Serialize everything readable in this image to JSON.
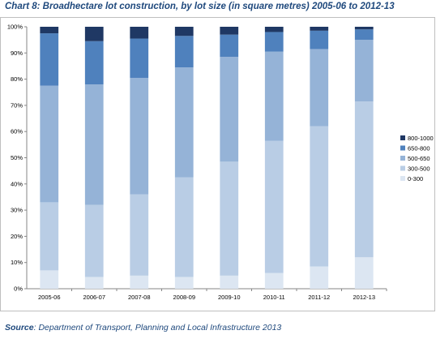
{
  "source_label": "Source",
  "source_text": ": Department of Transport, Planning and Local Infrastructure 2013",
  "chart_data": {
    "type": "bar",
    "stacked": true,
    "title": "Chart 8: Broadhectare lot construction, by lot size (in square metres) 2005-06 to 2012-13",
    "xlabel": "",
    "ylabel": "",
    "ylim": [
      0,
      100
    ],
    "y_ticks": [
      "0%",
      "10%",
      "20%",
      "30%",
      "40%",
      "50%",
      "60%",
      "70%",
      "80%",
      "90%",
      "100%"
    ],
    "categories": [
      "2005-06",
      "2006-07",
      "2007-08",
      "2008-09",
      "2009-10",
      "2010-11",
      "2011-12",
      "2012-13"
    ],
    "grid": false,
    "legend_position": "right",
    "series": [
      {
        "name": "0-300",
        "color": "#dce6f2",
        "values": [
          7,
          4.5,
          5,
          4.5,
          5,
          6,
          8.5,
          12
        ]
      },
      {
        "name": "300-500",
        "color": "#b9cde5",
        "values": [
          26,
          27.5,
          31,
          38,
          43.5,
          50.5,
          53.5,
          59.5
        ]
      },
      {
        "name": "500-650",
        "color": "#95b3d7",
        "values": [
          44.5,
          46,
          44.5,
          42,
          40,
          34,
          29.5,
          23.5
        ]
      },
      {
        "name": "650-800",
        "color": "#4f81bd",
        "values": [
          20,
          16.5,
          15,
          12,
          8.5,
          7.5,
          7,
          4
        ]
      },
      {
        "name": "800-1000",
        "color": "#1f3864",
        "values": [
          2.5,
          5.5,
          4.5,
          3.5,
          3,
          2,
          1.5,
          1
        ]
      }
    ]
  }
}
